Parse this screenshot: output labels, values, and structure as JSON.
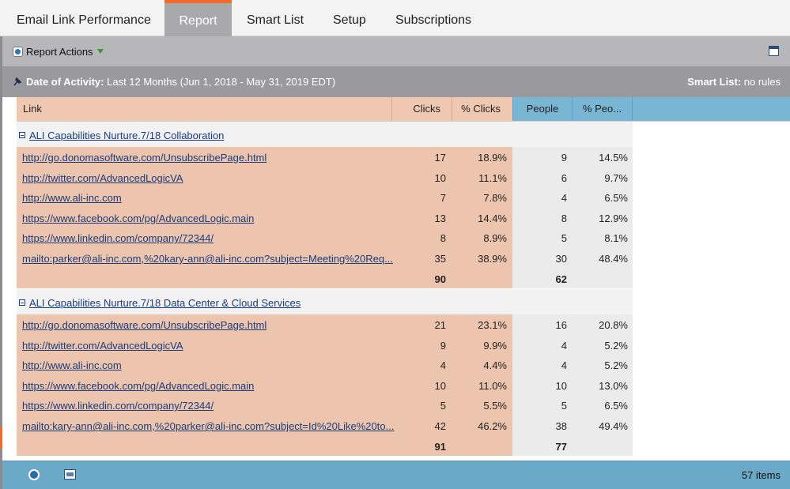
{
  "tabs": [
    {
      "label": "Email Link Performance",
      "active": false
    },
    {
      "label": "Report",
      "active": true
    },
    {
      "label": "Smart List",
      "active": false
    },
    {
      "label": "Setup",
      "active": false
    },
    {
      "label": "Subscriptions",
      "active": false
    }
  ],
  "toolbar": {
    "report_actions_label": "Report Actions"
  },
  "filter": {
    "date_label": "Date of Activity:",
    "date_value": "Last 12 Months (Jun 1, 2018 - May 31, 2019 EDT)",
    "smartlist_label": "Smart List:",
    "smartlist_value": "no rules"
  },
  "table": {
    "columns": {
      "link": "Link",
      "clicks": "Clicks",
      "pct_clicks": "% Clicks",
      "people": "People",
      "pct_people": "% Peo..."
    },
    "groups": [
      {
        "title": "ALI Capabilities Nurture.7/18 Collaboration",
        "rows": [
          {
            "link": "http://go.donomasoftware.com/UnsubscribePage.html",
            "clicks": "17",
            "pct_clicks": "18.9%",
            "people": "9",
            "pct_people": "14.5%"
          },
          {
            "link": "http://twitter.com/AdvancedLogicVA",
            "clicks": "10",
            "pct_clicks": "11.1%",
            "people": "6",
            "pct_people": "9.7%"
          },
          {
            "link": "http://www.ali-inc.com",
            "clicks": "7",
            "pct_clicks": "7.8%",
            "people": "4",
            "pct_people": "6.5%"
          },
          {
            "link": "https://www.facebook.com/pg/AdvancedLogic.main",
            "clicks": "13",
            "pct_clicks": "14.4%",
            "people": "8",
            "pct_people": "12.9%"
          },
          {
            "link": "https://www.linkedin.com/company/72344/",
            "clicks": "8",
            "pct_clicks": "8.9%",
            "people": "5",
            "pct_people": "8.1%"
          },
          {
            "link": "mailto:parker@ali-inc.com,%20kary-ann@ali-inc.com?subject=Meeting%20Req...",
            "clicks": "35",
            "pct_clicks": "38.9%",
            "people": "30",
            "pct_people": "48.4%"
          }
        ],
        "total_clicks": "90",
        "total_people": "62"
      },
      {
        "title": "ALI Capabilities Nurture.7/18 Data Center & Cloud Services",
        "rows": [
          {
            "link": "http://go.donomasoftware.com/UnsubscribePage.html",
            "clicks": "21",
            "pct_clicks": "23.1%",
            "people": "16",
            "pct_people": "20.8%"
          },
          {
            "link": "http://twitter.com/AdvancedLogicVA",
            "clicks": "9",
            "pct_clicks": "9.9%",
            "people": "4",
            "pct_people": "5.2%"
          },
          {
            "link": "http://www.ali-inc.com",
            "clicks": "4",
            "pct_clicks": "4.4%",
            "people": "4",
            "pct_people": "5.2%"
          },
          {
            "link": "https://www.facebook.com/pg/AdvancedLogic.main",
            "clicks": "10",
            "pct_clicks": "11.0%",
            "people": "10",
            "pct_people": "13.0%"
          },
          {
            "link": "https://www.linkedin.com/company/72344/",
            "clicks": "5",
            "pct_clicks": "5.5%",
            "people": "5",
            "pct_people": "6.5%"
          },
          {
            "link": "mailto:kary-ann@ali-inc.com,%20parker@ali-inc.com?subject=Id%20Like%20to...",
            "clicks": "42",
            "pct_clicks": "46.2%",
            "people": "38",
            "pct_people": "49.4%"
          }
        ],
        "total_clicks": "91",
        "total_people": "77"
      }
    ]
  },
  "footer": {
    "items_count": "57 items"
  },
  "colors": {
    "tab_accent": "#f26b2a",
    "clicks_header": "#f0c8b1",
    "people_header": "#78b6d4",
    "link": "#1a3d7c"
  }
}
